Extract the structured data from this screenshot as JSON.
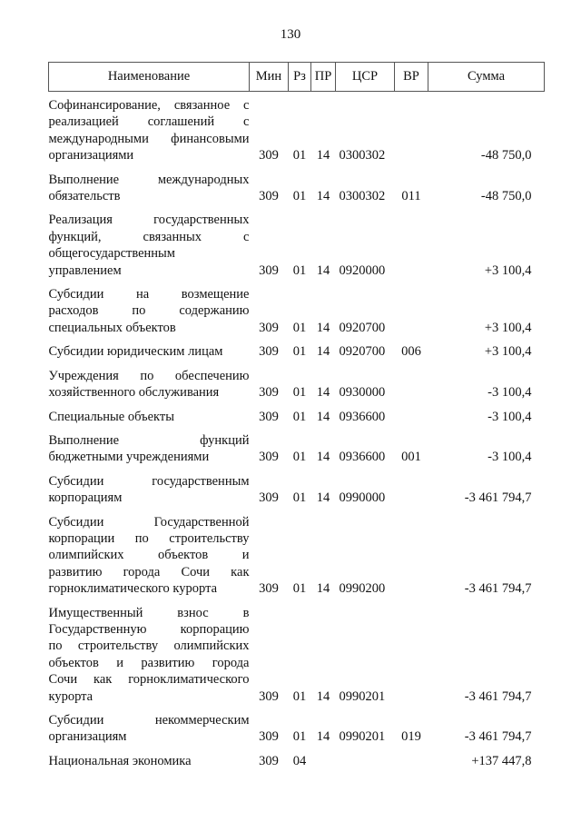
{
  "page_number": "130",
  "columns": [
    "Наименование",
    "Мин",
    "Рз",
    "ПР",
    "ЦСР",
    "ВР",
    "Сумма"
  ],
  "rows": [
    {
      "name_lines": [
        "Софинансирование, связанное с",
        "реализацией соглашений с",
        "международными финансовыми",
        "организациями"
      ],
      "min": "309",
      "rz": "01",
      "pr": "14",
      "csr": "0300302",
      "vr": "",
      "sum": "-48 750,0"
    },
    {
      "name_lines": [
        "Выполнение международных",
        "обязательств"
      ],
      "min": "309",
      "rz": "01",
      "pr": "14",
      "csr": "0300302",
      "vr": "011",
      "sum": "-48 750,0"
    },
    {
      "name_lines": [
        "Реализация государственных",
        "функций, связанных с",
        "общегосударственным",
        "управлением"
      ],
      "min": "309",
      "rz": "01",
      "pr": "14",
      "csr": "0920000",
      "vr": "",
      "sum": "+3 100,4"
    },
    {
      "name_lines": [
        "Субсидии на возмещение",
        "расходов по содержанию",
        "специальных объектов"
      ],
      "min": "309",
      "rz": "01",
      "pr": "14",
      "csr": "0920700",
      "vr": "",
      "sum": "+3 100,4"
    },
    {
      "name_lines": [
        "Субсидии юридическим лицам"
      ],
      "min": "309",
      "rz": "01",
      "pr": "14",
      "csr": "0920700",
      "vr": "006",
      "sum": "+3 100,4"
    },
    {
      "name_lines": [
        "Учреждения по обеспечению",
        "хозяйственного обслуживания"
      ],
      "min": "309",
      "rz": "01",
      "pr": "14",
      "csr": "0930000",
      "vr": "",
      "sum": "-3 100,4"
    },
    {
      "name_lines": [
        "Специальные объекты"
      ],
      "min": "309",
      "rz": "01",
      "pr": "14",
      "csr": "0936600",
      "vr": "",
      "sum": "-3 100,4"
    },
    {
      "name_lines": [
        "Выполнение функций",
        "бюджетными учреждениями"
      ],
      "min": "309",
      "rz": "01",
      "pr": "14",
      "csr": "0936600",
      "vr": "001",
      "sum": "-3 100,4"
    },
    {
      "name_lines": [
        "Субсидии государственным",
        "корпорациям"
      ],
      "min": "309",
      "rz": "01",
      "pr": "14",
      "csr": "0990000",
      "vr": "",
      "sum": "-3 461 794,7"
    },
    {
      "name_lines": [
        "Субсидии Государственной",
        "корпорации по строительству",
        "олимпийских объектов и",
        "развитию города Сочи как",
        "горноклиматического курорта"
      ],
      "min": "309",
      "rz": "01",
      "pr": "14",
      "csr": "0990200",
      "vr": "",
      "sum": "-3 461 794,7"
    },
    {
      "name_lines": [
        "Имущественный взнос в",
        "Государственную корпорацию",
        "по строительству олимпийских",
        "объектов и развитию города",
        "Сочи как горноклиматического",
        "курорта"
      ],
      "min": "309",
      "rz": "01",
      "pr": "14",
      "csr": "0990201",
      "vr": "",
      "sum": "-3 461 794,7"
    },
    {
      "name_lines": [
        "Субсидии некоммерческим",
        "организациям"
      ],
      "min": "309",
      "rz": "01",
      "pr": "14",
      "csr": "0990201",
      "vr": "019",
      "sum": "-3 461 794,7"
    },
    {
      "name_lines": [
        "Национальная экономика"
      ],
      "min": "309",
      "rz": "04",
      "pr": "",
      "csr": "",
      "vr": "",
      "sum": "+137 447,8"
    }
  ]
}
